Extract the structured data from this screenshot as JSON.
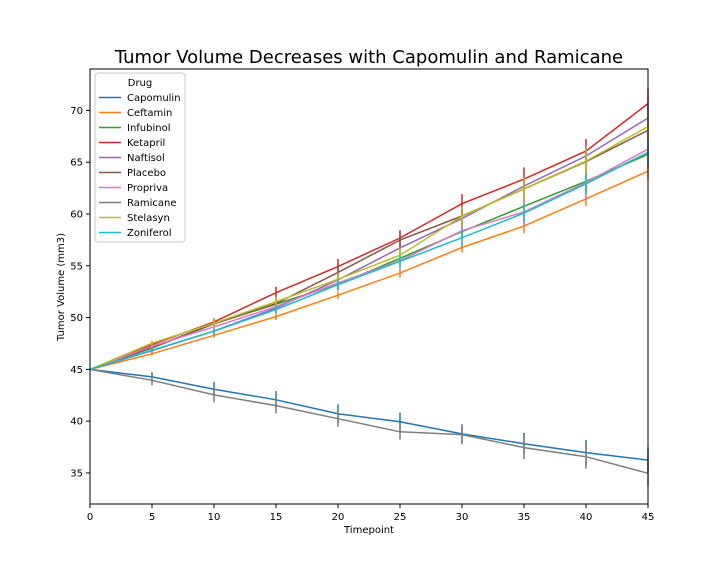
{
  "chart_data": {
    "type": "line",
    "title": "Tumor Volume Decreases with Capomulin and Ramicane",
    "xlabel": "Timepoint",
    "ylabel": "Tumor Volume (mm3)",
    "xlim": [
      0,
      45
    ],
    "ylim": [
      32,
      74
    ],
    "xticks": [
      0,
      5,
      10,
      15,
      20,
      25,
      30,
      35,
      40,
      45
    ],
    "yticks": [
      35,
      40,
      45,
      50,
      55,
      60,
      65,
      70
    ],
    "grid": false,
    "legend": {
      "title": "Drug",
      "placement": "upper-left"
    },
    "x": [
      0,
      5,
      10,
      15,
      20,
      25,
      30,
      35,
      40,
      45
    ],
    "series": [
      {
        "name": "Capomulin",
        "color": "#1f77b4",
        "values": [
          45.0,
          44.27,
          43.08,
          42.06,
          40.72,
          39.94,
          38.77,
          37.82,
          36.96,
          36.24
        ],
        "err": [
          0,
          0.45,
          0.7,
          0.84,
          0.91,
          0.88,
          0.93,
          1.05,
          1.22,
          1.22
        ]
      },
      {
        "name": "Ceftamin",
        "color": "#ff7f0e",
        "values": [
          45.0,
          46.5,
          48.29,
          50.09,
          52.16,
          54.29,
          56.77,
          58.83,
          61.47,
          64.13
        ],
        "err": [
          0,
          0.16,
          0.24,
          0.33,
          0.36,
          0.44,
          0.49,
          0.69,
          0.71,
          0.88
        ]
      },
      {
        "name": "Infubinol",
        "color": "#2ca02c",
        "values": [
          45.0,
          47.06,
          49.4,
          51.3,
          53.2,
          55.72,
          58.3,
          60.74,
          63.16,
          65.76
        ],
        "err": [
          0,
          0.24,
          0.28,
          0.36,
          0.48,
          0.55,
          0.63,
          0.98,
          1.06,
          1.14
        ]
      },
      {
        "name": "Ketapril",
        "color": "#d62728",
        "values": [
          45.0,
          47.39,
          49.58,
          52.4,
          54.92,
          57.68,
          60.99,
          63.37,
          66.07,
          70.66
        ],
        "err": [
          0,
          0.26,
          0.36,
          0.58,
          0.73,
          0.76,
          0.93,
          1.13,
          1.16,
          1.45
        ]
      },
      {
        "name": "Naftisol",
        "color": "#9467bd",
        "values": [
          45.0,
          46.8,
          48.69,
          50.93,
          53.64,
          56.73,
          59.56,
          62.69,
          65.6,
          69.27
        ],
        "err": [
          0,
          0.2,
          0.34,
          0.48,
          0.64,
          0.79,
          0.87,
          0.96,
          1.09,
          1.4
        ]
      },
      {
        "name": "Placebo",
        "color": "#8c564b",
        "values": [
          45.0,
          47.13,
          49.42,
          51.36,
          54.36,
          57.48,
          59.81,
          62.42,
          65.05,
          68.08
        ],
        "err": [
          0,
          0.22,
          0.4,
          0.61,
          0.84,
          0.88,
          0.98,
          1.04,
          1.27,
          1.35
        ]
      },
      {
        "name": "Propriva",
        "color": "#e377c2",
        "values": [
          45.0,
          47.25,
          49.1,
          51.07,
          53.35,
          55.5,
          58.39,
          60.2,
          63.05,
          66.26
        ],
        "err": [
          0,
          0.23,
          0.38,
          0.6,
          0.8,
          0.88,
          1.0,
          1.4,
          1.6,
          1.88
        ]
      },
      {
        "name": "Ramicane",
        "color": "#7f7f7f",
        "values": [
          45.0,
          43.94,
          42.53,
          41.5,
          40.24,
          38.97,
          38.7,
          37.45,
          36.57,
          34.96
        ],
        "err": [
          0,
          0.48,
          0.72,
          0.77,
          0.79,
          0.75,
          0.93,
          1.13,
          1.16,
          1.23
        ]
      },
      {
        "name": "Stelasyn",
        "color": "#bcbd22",
        "values": [
          45.0,
          47.53,
          49.46,
          51.53,
          53.7,
          56.02,
          59.78,
          62.43,
          65.11,
          68.44
        ],
        "err": [
          0,
          0.24,
          0.43,
          0.49,
          0.62,
          0.74,
          0.93,
          1.13,
          1.37,
          1.56
        ]
      },
      {
        "name": "Zoniferol",
        "color": "#17becf",
        "values": [
          45.0,
          46.85,
          48.69,
          50.78,
          53.17,
          55.43,
          57.71,
          60.09,
          62.92,
          65.96
        ],
        "err": [
          0,
          0.19,
          0.26,
          0.37,
          0.53,
          0.6,
          0.8,
          0.88,
          1.0,
          1.0
        ]
      }
    ]
  }
}
